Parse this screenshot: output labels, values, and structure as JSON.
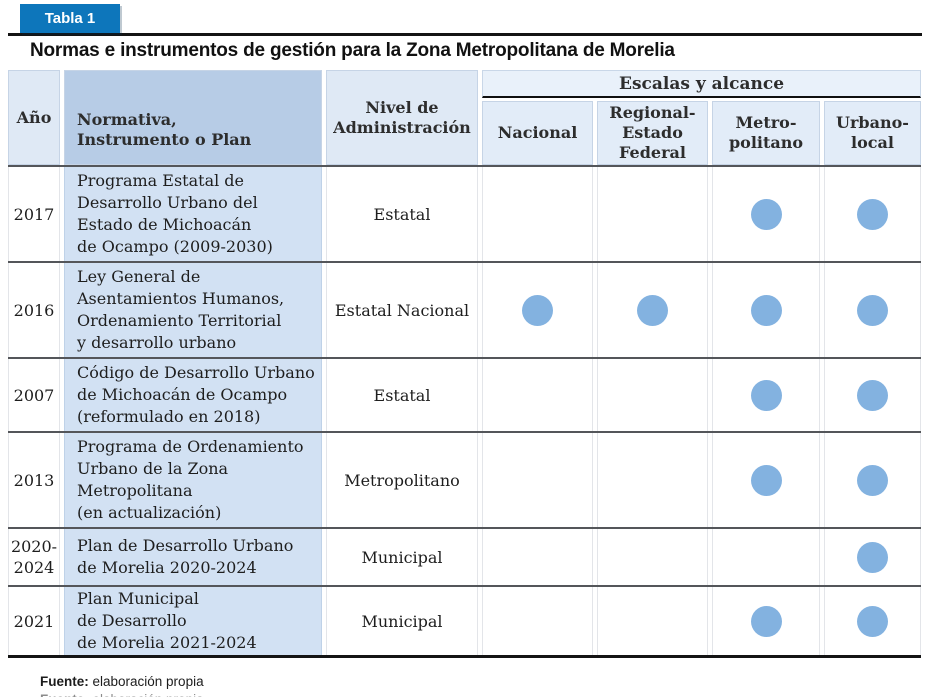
{
  "badge": {
    "label": "Tabla 1"
  },
  "title": "Normas e instrumentos de gestión para la Zona Metropolitana de Morelia",
  "colors": {
    "accent_blue": "#0d76bb",
    "dot_blue": "#83b2e0",
    "header_fill": "#dfe9f5",
    "instrument_header_fill": "#b7cce6",
    "instrument_body_fill": "#d2e1f3"
  },
  "table": {
    "headers": {
      "year": "Año",
      "instrument": "Normativa,\nInstrumento o Plan",
      "admin_level": "Nivel de\nAdministración",
      "scales_group": "Escalas y alcance",
      "scales": [
        "Nacional",
        "Regional-\nEstado\nFederal",
        "Metro-\npolitano",
        "Urbano-\nlocal"
      ]
    },
    "rows": [
      {
        "year": "2017",
        "instrument": "Programa Estatal de\nDesarrollo Urbano del\nEstado de Michoacán\nde Ocampo (2009-2030)",
        "admin_level": "Estatal",
        "dots": [
          false,
          false,
          true,
          true
        ]
      },
      {
        "year": "2016",
        "instrument": "Ley General de\nAsentamientos Humanos,\nOrdenamiento Territorial\ny desarrollo urbano",
        "admin_level": "Estatal Nacional",
        "dots": [
          true,
          true,
          true,
          true
        ]
      },
      {
        "year": "2007",
        "instrument": "Código de Desarrollo Urbano\nde Michoacán de Ocampo\n(reformulado en 2018)",
        "admin_level": "Estatal",
        "dots": [
          false,
          false,
          true,
          true
        ]
      },
      {
        "year": "2013",
        "instrument": "Programa de Ordenamiento\nUrbano de la Zona\nMetropolitana\n(en actualización)",
        "admin_level": "Metropolitano",
        "dots": [
          false,
          false,
          true,
          true
        ]
      },
      {
        "year": "2020-2024",
        "instrument": "Plan de Desarrollo Urbano\nde Morelia 2020-2024",
        "admin_level": "Municipal",
        "dots": [
          false,
          false,
          false,
          true
        ]
      },
      {
        "year": "2021",
        "instrument": "Plan Municipal\nde Desarrollo\nde Morelia 2021-2024",
        "admin_level": "Municipal",
        "dots": [
          false,
          false,
          true,
          true
        ]
      }
    ]
  },
  "footer": {
    "source_label": "Fuente:",
    "source_text": " elaboración propia"
  }
}
